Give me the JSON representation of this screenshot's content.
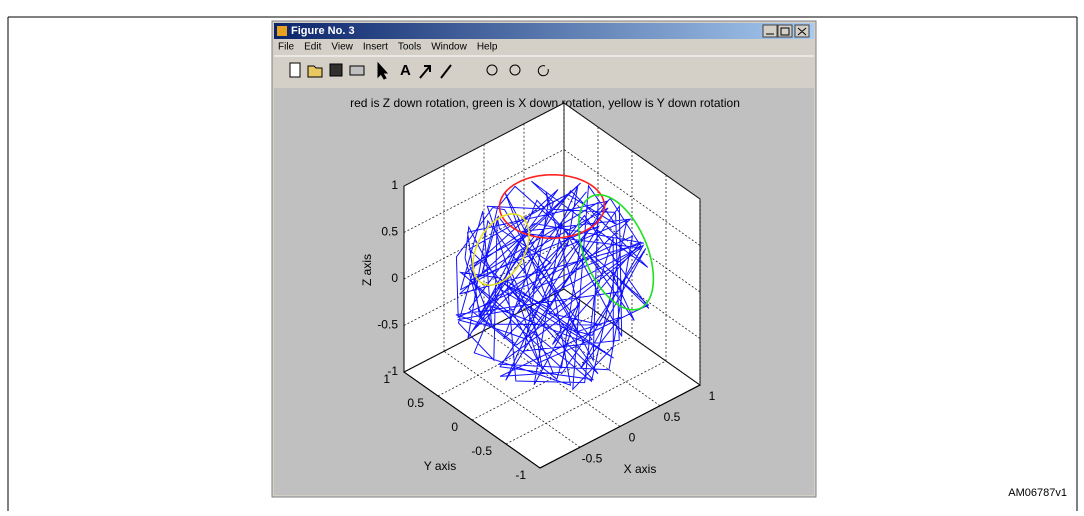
{
  "window": {
    "title": "Figure No. 3",
    "menu": [
      "File",
      "Edit",
      "View",
      "Insert",
      "Tools",
      "Window",
      "Help"
    ]
  },
  "plot": {
    "title": "red is Z down rotation, green is X down rotation, yellow is Y down rotation",
    "z_axis": {
      "label": "Z axis",
      "ticks": [
        1,
        0.5,
        0,
        -0.5,
        -1
      ]
    },
    "y_axis": {
      "label": "Y axis",
      "ticks": [
        1,
        0.5,
        0,
        -0.5,
        -1
      ]
    },
    "x_axis": {
      "label": "X axis",
      "ticks": [
        -0.5,
        0,
        0.5,
        1
      ]
    }
  },
  "figure_id": "AM06787v1"
}
